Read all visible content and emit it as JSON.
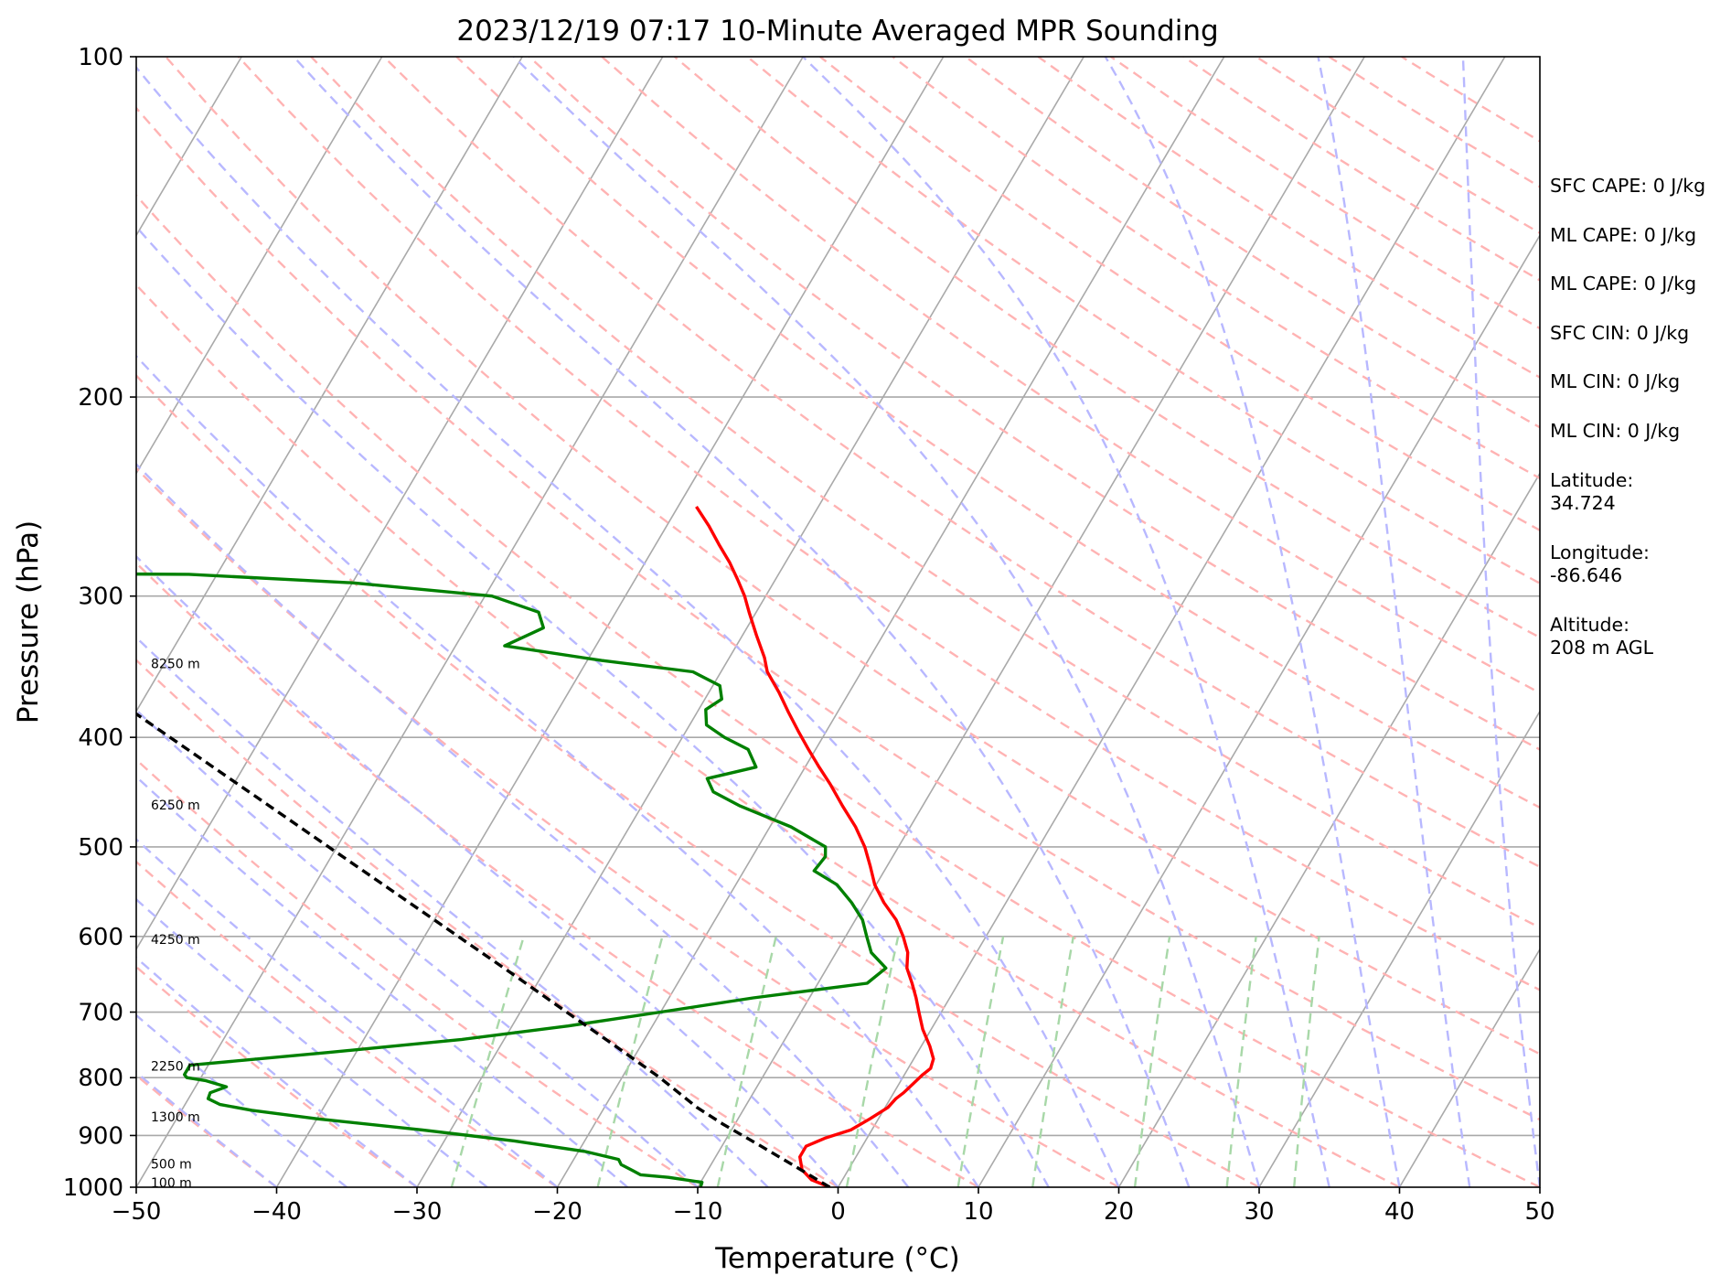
{
  "chart_data": {
    "type": "line",
    "title": "2023/12/19 07:17 10-Minute Averaged MPR Sounding",
    "xlabel": "Temperature (°C)",
    "ylabel": "Pressure (hPa)",
    "xlim": [
      -50,
      50
    ],
    "ylim": [
      1000,
      100
    ],
    "y_scale": "log",
    "x_ticks": [
      "−50",
      "−40",
      "−30",
      "−20",
      "−10",
      "0",
      "10",
      "20",
      "30",
      "40",
      "50"
    ],
    "y_ticks": [
      "100",
      "200",
      "300",
      "400",
      "500",
      "600",
      "700",
      "800",
      "900",
      "1000"
    ],
    "grid": "isobars",
    "height_labels": [
      {
        "text": "8250 m",
        "p": 345
      },
      {
        "text": "6250 m",
        "p": 460
      },
      {
        "text": "4250 m",
        "p": 605
      },
      {
        "text": "2250 m",
        "p": 783
      },
      {
        "text": "1300 m",
        "p": 868
      },
      {
        "text": "500 m",
        "p": 955
      },
      {
        "text": "100 m",
        "p": 993
      }
    ],
    "series": [
      {
        "color": "#ff0000",
        "points": [
          {
            "p": 1000,
            "t": -0.6
          },
          {
            "p": 985,
            "t": -2.2
          },
          {
            "p": 965,
            "t": -3.3
          },
          {
            "p": 940,
            "t": -4.0
          },
          {
            "p": 920,
            "t": -4.0
          },
          {
            "p": 905,
            "t": -3.0
          },
          {
            "p": 890,
            "t": -1.5
          },
          {
            "p": 870,
            "t": -0.6
          },
          {
            "p": 850,
            "t": 0.2
          },
          {
            "p": 835,
            "t": 0.4
          },
          {
            "p": 825,
            "t": 0.7
          },
          {
            "p": 810,
            "t": 1.0
          },
          {
            "p": 795,
            "t": 1.3
          },
          {
            "p": 785,
            "t": 1.6
          },
          {
            "p": 770,
            "t": 1.4
          },
          {
            "p": 750,
            "t": 0.6
          },
          {
            "p": 725,
            "t": -0.6
          },
          {
            "p": 700,
            "t": -1.6
          },
          {
            "p": 680,
            "t": -2.4
          },
          {
            "p": 660,
            "t": -3.3
          },
          {
            "p": 640,
            "t": -4.3
          },
          {
            "p": 620,
            "t": -4.9
          },
          {
            "p": 600,
            "t": -5.9
          },
          {
            "p": 580,
            "t": -7.1
          },
          {
            "p": 560,
            "t": -8.7
          },
          {
            "p": 540,
            "t": -10.1
          },
          {
            "p": 520,
            "t": -11.2
          },
          {
            "p": 500,
            "t": -12.4
          },
          {
            "p": 480,
            "t": -13.9
          },
          {
            "p": 460,
            "t": -15.7
          },
          {
            "p": 440,
            "t": -17.5
          },
          {
            "p": 425,
            "t": -19.0
          },
          {
            "p": 410,
            "t": -20.5
          },
          {
            "p": 395,
            "t": -22.0
          },
          {
            "p": 380,
            "t": -23.5
          },
          {
            "p": 365,
            "t": -25.0
          },
          {
            "p": 350,
            "t": -26.7
          },
          {
            "p": 340,
            "t": -27.5
          },
          {
            "p": 325,
            "t": -29.0
          },
          {
            "p": 310,
            "t": -30.5
          },
          {
            "p": 300,
            "t": -31.5
          },
          {
            "p": 290,
            "t": -32.7
          },
          {
            "p": 280,
            "t": -34.0
          },
          {
            "p": 270,
            "t": -35.5
          },
          {
            "p": 260,
            "t": -37.0
          },
          {
            "p": 250,
            "t": -38.7
          }
        ]
      },
      {
        "color": "#008000",
        "points": [
          {
            "p": 1000,
            "t": -9.8
          },
          {
            "p": 990,
            "t": -9.9
          },
          {
            "p": 980,
            "t": -12.5
          },
          {
            "p": 975,
            "t": -14.6
          },
          {
            "p": 967,
            "t": -15.3
          },
          {
            "p": 955,
            "t": -16.4
          },
          {
            "p": 945,
            "t": -16.8
          },
          {
            "p": 930,
            "t": -19.5
          },
          {
            "p": 910,
            "t": -25.0
          },
          {
            "p": 890,
            "t": -32.0
          },
          {
            "p": 870,
            "t": -40.0
          },
          {
            "p": 855,
            "t": -45.0
          },
          {
            "p": 845,
            "t": -47.5
          },
          {
            "p": 835,
            "t": -48.6
          },
          {
            "p": 825,
            "t": -48.7
          },
          {
            "p": 815,
            "t": -47.8
          },
          {
            "p": 805,
            "t": -49.5
          },
          {
            "p": 800,
            "t": -51.0
          },
          {
            "p": 795,
            "t": -51.3
          },
          {
            "p": 780,
            "t": -51.3
          },
          {
            "p": 760,
            "t": -42.0
          },
          {
            "p": 740,
            "t": -33.0
          },
          {
            "p": 720,
            "t": -26.0
          },
          {
            "p": 700,
            "t": -20.0
          },
          {
            "p": 680,
            "t": -14.0
          },
          {
            "p": 660,
            "t": -6.5
          },
          {
            "p": 640,
            "t": -5.8
          },
          {
            "p": 620,
            "t": -7.5
          },
          {
            "p": 600,
            "t": -8.5
          },
          {
            "p": 580,
            "t": -9.5
          },
          {
            "p": 560,
            "t": -11.0
          },
          {
            "p": 540,
            "t": -12.8
          },
          {
            "p": 525,
            "t": -15.0
          },
          {
            "p": 510,
            "t": -14.8
          },
          {
            "p": 500,
            "t": -15.2
          },
          {
            "p": 480,
            "t": -18.5
          },
          {
            "p": 460,
            "t": -23.0
          },
          {
            "p": 447,
            "t": -25.5
          },
          {
            "p": 435,
            "t": -26.5
          },
          {
            "p": 425,
            "t": -23.5
          },
          {
            "p": 410,
            "t": -24.8
          },
          {
            "p": 400,
            "t": -27.0
          },
          {
            "p": 390,
            "t": -28.8
          },
          {
            "p": 378,
            "t": -29.5
          },
          {
            "p": 370,
            "t": -28.8
          },
          {
            "p": 360,
            "t": -29.5
          },
          {
            "p": 350,
            "t": -32.0
          },
          {
            "p": 342,
            "t": -39.0
          },
          {
            "p": 332,
            "t": -46.5
          },
          {
            "p": 320,
            "t": -44.5
          },
          {
            "p": 310,
            "t": -45.5
          },
          {
            "p": 300,
            "t": -49.5
          },
          {
            "p": 292,
            "t": -60.0
          },
          {
            "p": 287,
            "t": -72.0
          },
          {
            "p": 286,
            "t": -96.0
          }
        ]
      },
      {
        "color": "#000000",
        "points": [
          {
            "p": 1000,
            "t": -0.6
          },
          {
            "p": 960,
            "t": -3.8
          },
          {
            "p": 920,
            "t": -7.2
          },
          {
            "p": 880,
            "t": -10.8
          },
          {
            "p": 850,
            "t": -13.4
          },
          {
            "p": 800,
            "t": -17.3
          },
          {
            "p": 750,
            "t": -21.8
          },
          {
            "p": 700,
            "t": -26.7
          },
          {
            "p": 650,
            "t": -31.9
          },
          {
            "p": 600,
            "t": -37.6
          },
          {
            "p": 550,
            "t": -43.8
          },
          {
            "p": 500,
            "t": -50.6
          },
          {
            "p": 450,
            "t": -58.1
          },
          {
            "p": 400,
            "t": -66.5
          },
          {
            "p": 360,
            "t": -74.0
          },
          {
            "p": 320,
            "t": -82.1
          }
        ]
      }
    ]
  },
  "info_panel": [
    "SFC CAPE: 0 J/kg",
    "ML CAPE: 0 J/kg",
    "ML CAPE: 0 J/kg",
    "SFC CIN: 0 J/kg",
    "ML CIN: 0 J/kg",
    "ML CIN: 0 J/kg",
    "Latitude:",
    "34.724",
    "Longitude:",
    "-86.646",
    "Altitude:",
    "208 m AGL"
  ],
  "colors": {
    "isotherm": "#a9a9a9",
    "dry_adiabat": "#ffb3b3",
    "moist_adiabat": "#b8b8ff",
    "mixing_ratio": "#a8d8a8"
  }
}
